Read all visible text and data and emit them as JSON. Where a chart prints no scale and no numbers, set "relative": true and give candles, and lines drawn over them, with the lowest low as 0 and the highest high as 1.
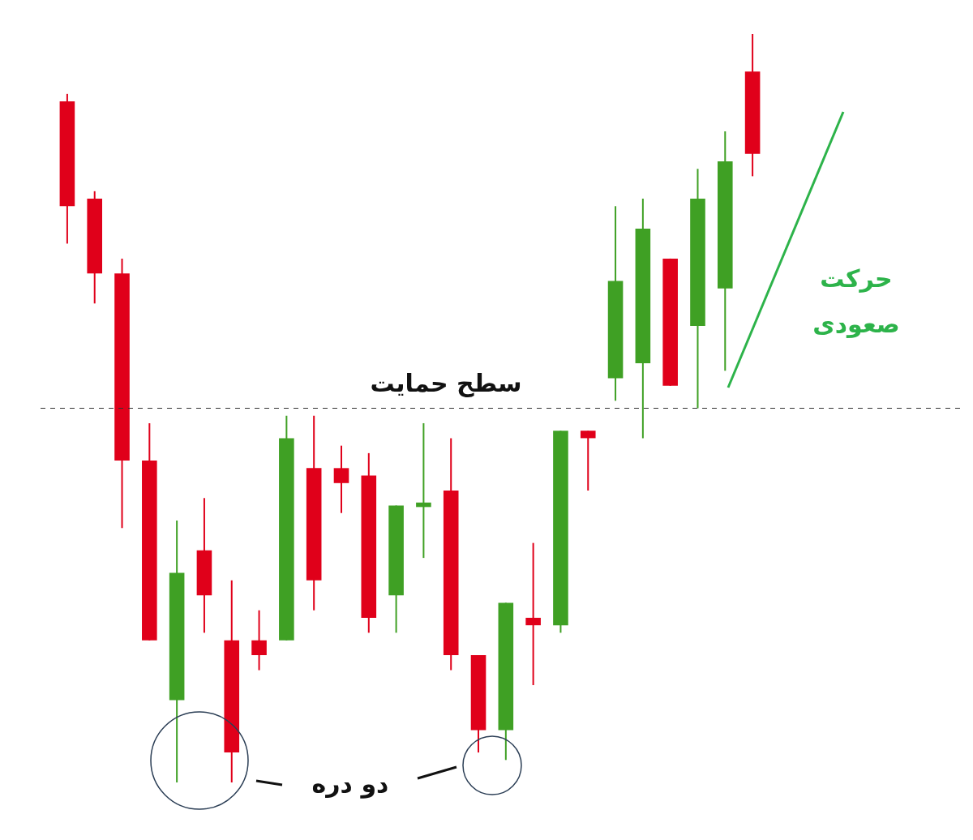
{
  "chart_data": {
    "type": "candlestick",
    "relative": true,
    "categories": [
      null,
      null,
      null,
      null,
      null,
      null,
      null,
      null,
      null,
      null,
      null,
      null,
      null,
      null,
      null,
      null,
      null,
      null,
      null,
      null,
      null,
      null,
      null,
      null,
      null,
      null
    ],
    "ohlc": [
      [
        0.91,
        0.92,
        0.72,
        0.77
      ],
      [
        0.78,
        0.79,
        0.64,
        0.68
      ],
      [
        0.68,
        0.7,
        0.34,
        0.43
      ],
      [
        0.43,
        0.48,
        0.19,
        0.19
      ],
      [
        0.11,
        0.35,
        0.0,
        0.28
      ],
      [
        0.31,
        0.38,
        0.2,
        0.25
      ],
      [
        0.19,
        0.27,
        0.0,
        0.04
      ],
      [
        0.19,
        0.23,
        0.15,
        0.17
      ],
      [
        0.19,
        0.49,
        0.19,
        0.46
      ],
      [
        0.42,
        0.49,
        0.23,
        0.27
      ],
      [
        0.42,
        0.45,
        0.36,
        0.4
      ],
      [
        0.41,
        0.44,
        0.2,
        0.22
      ],
      [
        0.25,
        0.37,
        0.2,
        0.37
      ],
      [
        0.368,
        0.48,
        0.3,
        0.374
      ],
      [
        0.39,
        0.46,
        0.15,
        0.17
      ],
      [
        0.17,
        0.17,
        0.04,
        0.07
      ],
      [
        0.07,
        0.24,
        0.03,
        0.24
      ],
      [
        0.22,
        0.32,
        0.13,
        0.21
      ],
      [
        0.21,
        0.47,
        0.2,
        0.47
      ],
      [
        0.47,
        0.47,
        0.39,
        0.46
      ],
      [
        0.54,
        0.77,
        0.51,
        0.67
      ],
      [
        0.56,
        0.78,
        0.46,
        0.74
      ],
      [
        0.7,
        0.7,
        0.53,
        0.53
      ],
      [
        0.61,
        0.82,
        0.5,
        0.78
      ],
      [
        0.66,
        0.87,
        0.55,
        0.83
      ],
      [
        0.95,
        1.0,
        0.81,
        0.84
      ]
    ],
    "colors": [
      "#e0001a",
      "#e0001a",
      "#e0001a",
      "#e0001a",
      "#3fa024",
      "#e0001a",
      "#e0001a",
      "#e0001a",
      "#3fa024",
      "#e0001a",
      "#e0001a",
      "#e0001a",
      "#3fa024",
      "#3fa024",
      "#e0001a",
      "#e0001a",
      "#3fa024",
      "#e0001a",
      "#3fa024",
      "#e0001a",
      "#3fa024",
      "#3fa024",
      "#e0001a",
      "#3fa024",
      "#3fa024",
      "#e0001a"
    ],
    "ref_lines": [
      {
        "axis": "y",
        "value": 0.5,
        "label": "سطح حمایت",
        "color": "#333333",
        "line_style": "dashed"
      }
    ],
    "annotations": [
      "حرکت\nصعودی",
      "دو دره"
    ]
  }
}
